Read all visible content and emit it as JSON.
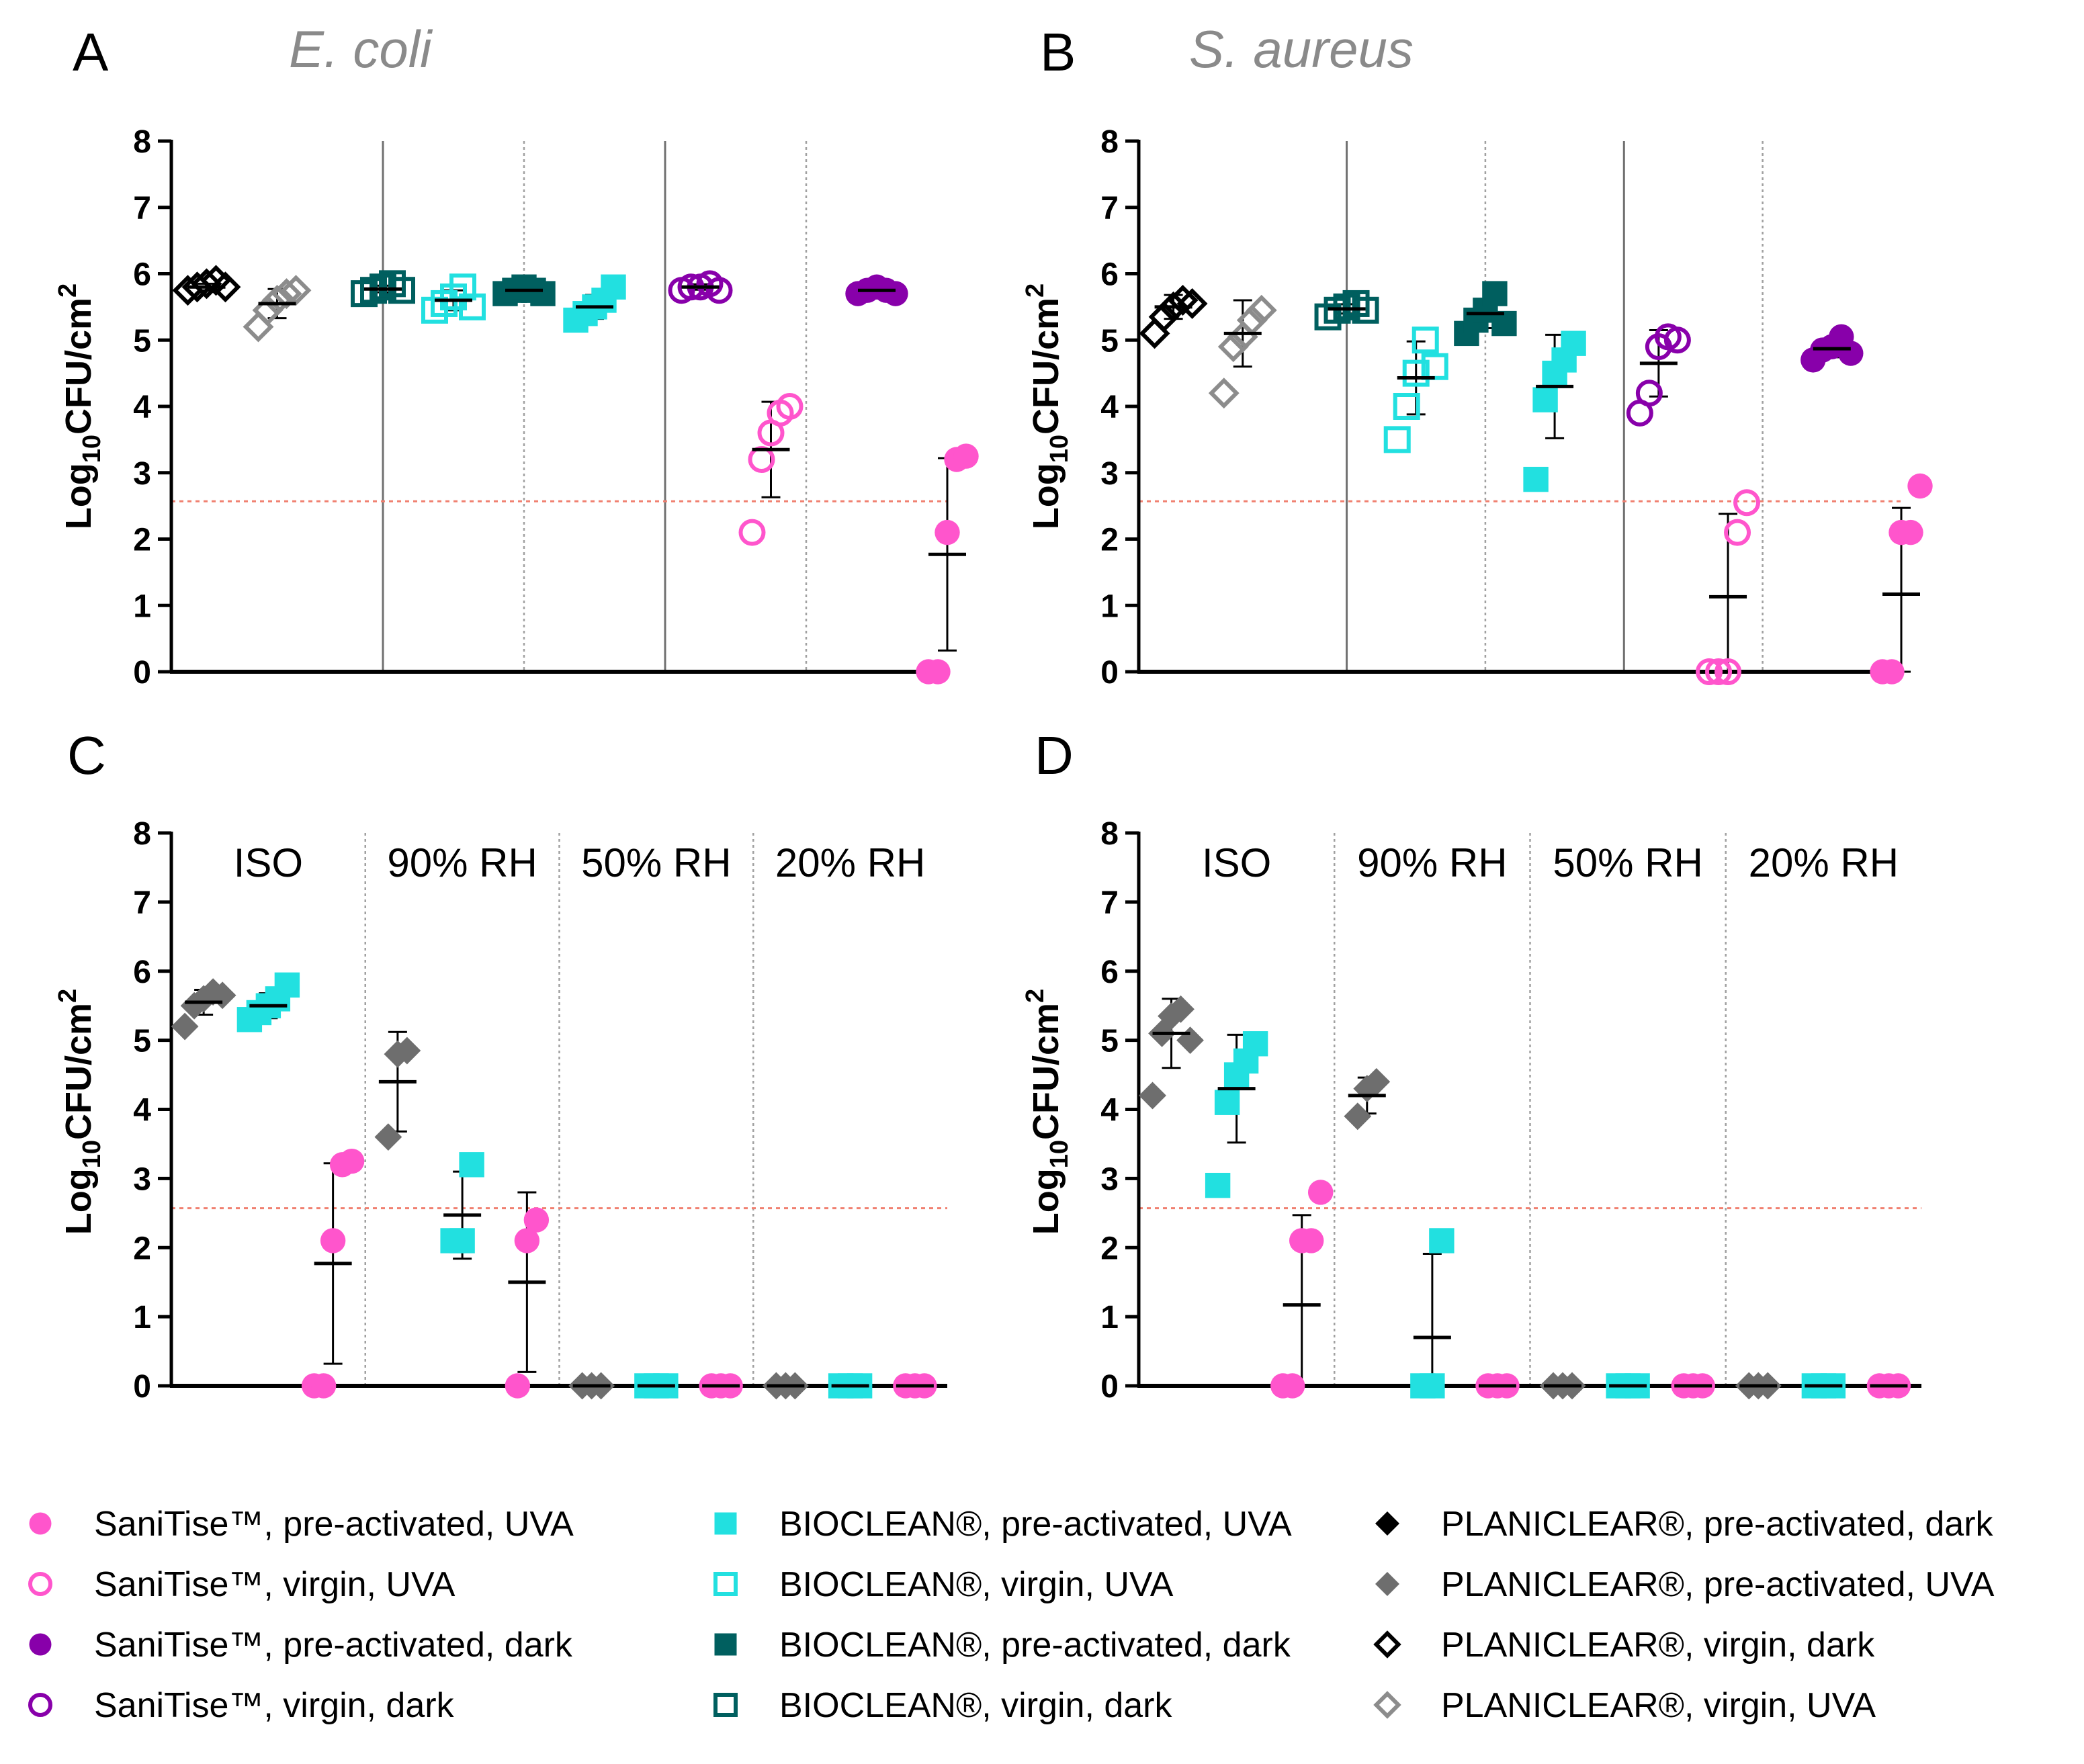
{
  "colors": {
    "sanitise_uva": "#ff55cc",
    "sanitise_dark": "#8800aa",
    "bioclean_uva": "#22e0e0",
    "bioclean_dark": "#005f5f",
    "planiclear_dark": "#000000",
    "planiclear_uva": "#6e6e6e",
    "planiclear_virgin_uva": "#8c8c8c",
    "lod": "#f08070",
    "axis": "#000000",
    "divider_solid": "#707070",
    "divider_dotted": "#a0a0a0"
  },
  "common": {
    "ylabel_main": "Log",
    "ylabel_sub": "10",
    "ylabel_rest": "CFU/cm",
    "ylabel_sup": "2",
    "ylim": [
      0,
      8
    ],
    "yticks": [
      "0",
      "1",
      "2",
      "3",
      "4",
      "5",
      "6",
      "7",
      "8"
    ],
    "detection_limit": 2.57
  },
  "legend": [
    {
      "label": "SaniTise™, pre-activated, UVA",
      "series": "sanitise_pa_uva"
    },
    {
      "label": "SaniTise™, virgin, UVA",
      "series": "sanitise_v_uva"
    },
    {
      "label": "SaniTise™, pre-activated, dark",
      "series": "sanitise_pa_dark"
    },
    {
      "label": "SaniTise™, virgin, dark",
      "series": "sanitise_v_dark"
    },
    {
      "label": "BIOCLEAN®, pre-activated, UVA",
      "series": "bioclean_pa_uva"
    },
    {
      "label": "BIOCLEAN®, virgin, UVA",
      "series": "bioclean_v_uva"
    },
    {
      "label": "BIOCLEAN®, pre-activated, dark",
      "series": "bioclean_pa_dark"
    },
    {
      "label": "BIOCLEAN®, virgin, dark",
      "series": "bioclean_v_dark"
    },
    {
      "label": "PLANICLEAR®, pre-activated, dark",
      "series": "planiclear_pa_dark"
    },
    {
      "label": "PLANICLEAR®, pre-activated, UVA",
      "series": "planiclear_pa_uva"
    },
    {
      "label": "PLANICLEAR®, virgin, dark",
      "series": "planiclear_v_dark"
    },
    {
      "label": "PLANICLEAR®, virgin, UVA",
      "series": "planiclear_v_uva"
    }
  ],
  "series_styles": {
    "sanitise_pa_uva": {
      "shape": "circle",
      "fill": true,
      "color": "sanitise_uva"
    },
    "sanitise_v_uva": {
      "shape": "circle",
      "fill": false,
      "color": "sanitise_uva"
    },
    "sanitise_pa_dark": {
      "shape": "circle",
      "fill": true,
      "color": "sanitise_dark"
    },
    "sanitise_v_dark": {
      "shape": "circle",
      "fill": false,
      "color": "sanitise_dark"
    },
    "bioclean_pa_uva": {
      "shape": "square",
      "fill": true,
      "color": "bioclean_uva"
    },
    "bioclean_v_uva": {
      "shape": "square",
      "fill": false,
      "color": "bioclean_uva"
    },
    "bioclean_pa_dark": {
      "shape": "square",
      "fill": true,
      "color": "bioclean_dark"
    },
    "bioclean_v_dark": {
      "shape": "square",
      "fill": false,
      "color": "bioclean_dark"
    },
    "planiclear_pa_dark": {
      "shape": "diamond",
      "fill": true,
      "color": "planiclear_dark"
    },
    "planiclear_pa_uva": {
      "shape": "diamond",
      "fill": true,
      "color": "planiclear_uva"
    },
    "planiclear_v_dark": {
      "shape": "diamond",
      "fill": false,
      "color": "planiclear_dark"
    },
    "planiclear_v_uva": {
      "shape": "diamond",
      "fill": false,
      "color": "planiclear_virgin_uva"
    }
  },
  "chart_data": [
    {
      "panel": "A",
      "organism": "E. coli",
      "type": "scatter",
      "n_slots": 11,
      "dividers": [
        {
          "after": 2,
          "style": "solid"
        },
        {
          "after": 4,
          "style": "dotted"
        },
        {
          "after": 6,
          "style": "solid"
        },
        {
          "after": 8,
          "style": "dotted"
        }
      ],
      "condition_labels": [],
      "groups": [
        {
          "series": "planiclear_v_dark",
          "slot": 0,
          "values": [
            5.75,
            5.8,
            5.85,
            5.9,
            5.8
          ],
          "mean": 5.8,
          "sd": 0.05
        },
        {
          "series": "planiclear_v_uva",
          "slot": 1,
          "values": [
            5.2,
            5.45,
            5.6,
            5.7,
            5.75
          ],
          "mean": 5.55,
          "sd": 0.22
        },
        {
          "series": "bioclean_v_dark",
          "slot": 2.5,
          "values": [
            5.7,
            5.75,
            5.8,
            5.85,
            5.75
          ],
          "mean": 5.77,
          "sd": 0.05
        },
        {
          "series": "bioclean_v_uva",
          "slot": 3.5,
          "values": [
            5.45,
            5.55,
            5.65,
            5.8,
            5.5
          ],
          "mean": 5.6,
          "sd": 0.15
        },
        {
          "series": "bioclean_pa_dark",
          "slot": 4.5,
          "values": [
            5.7,
            5.75,
            5.8,
            5.75,
            5.7
          ],
          "mean": 5.75,
          "sd": 0.04
        },
        {
          "series": "bioclean_pa_uva",
          "slot": 5.5,
          "values": [
            5.3,
            5.4,
            5.5,
            5.6,
            5.8
          ],
          "mean": 5.5,
          "sd": 0.18
        },
        {
          "series": "sanitise_v_dark",
          "slot": 7,
          "values": [
            5.75,
            5.8,
            5.8,
            5.85,
            5.75
          ],
          "mean": 5.8,
          "sd": 0.04
        },
        {
          "series": "sanitise_v_uva",
          "slot": 8,
          "values": [
            2.1,
            3.2,
            3.6,
            3.9,
            4.0
          ],
          "mean": 3.35,
          "sd": 0.72
        },
        {
          "series": "sanitise_pa_dark",
          "slot": 9.5,
          "values": [
            5.7,
            5.75,
            5.8,
            5.75,
            5.7
          ],
          "mean": 5.75,
          "sd": 0.04
        },
        {
          "series": "sanitise_pa_uva",
          "slot": 10.5,
          "values": [
            0,
            0,
            2.1,
            3.2,
            3.25
          ],
          "mean": 1.77,
          "sd": 1.45
        }
      ]
    },
    {
      "panel": "B",
      "organism": "S. aureus",
      "type": "scatter",
      "n_slots": 11,
      "dividers": [
        {
          "after": 2,
          "style": "solid"
        },
        {
          "after": 4,
          "style": "dotted"
        },
        {
          "after": 6,
          "style": "solid"
        },
        {
          "after": 8,
          "style": "dotted"
        }
      ],
      "condition_labels": [],
      "groups": [
        {
          "series": "planiclear_v_dark",
          "slot": 0,
          "values": [
            5.1,
            5.35,
            5.5,
            5.6,
            5.55
          ],
          "mean": 5.5,
          "sd": 0.18
        },
        {
          "series": "planiclear_v_uva",
          "slot": 1,
          "values": [
            4.2,
            4.9,
            5.05,
            5.3,
            5.45
          ],
          "mean": 5.1,
          "sd": 0.5
        },
        {
          "series": "bioclean_v_dark",
          "slot": 2.5,
          "values": [
            5.35,
            5.45,
            5.5,
            5.55,
            5.45
          ],
          "mean": 5.47,
          "sd": 0.07
        },
        {
          "series": "bioclean_v_uva",
          "slot": 3.5,
          "values": [
            3.5,
            4.0,
            4.5,
            5.0,
            4.6
          ],
          "mean": 4.43,
          "sd": 0.55
        },
        {
          "series": "bioclean_pa_dark",
          "slot": 4.5,
          "values": [
            5.1,
            5.3,
            5.45,
            5.7,
            5.25
          ],
          "mean": 5.4,
          "sd": 0.22
        },
        {
          "series": "bioclean_pa_uva",
          "slot": 5.5,
          "values": [
            2.9,
            4.1,
            4.5,
            4.7,
            4.95
          ],
          "mean": 4.3,
          "sd": 0.78
        },
        {
          "series": "sanitise_v_dark",
          "slot": 7,
          "values": [
            3.9,
            4.2,
            4.9,
            5.05,
            5.0
          ],
          "mean": 4.65,
          "sd": 0.5
        },
        {
          "series": "sanitise_v_uva",
          "slot": 8,
          "values": [
            0,
            0,
            0,
            2.1,
            2.55
          ],
          "mean": 1.13,
          "sd": 1.25
        },
        {
          "series": "sanitise_pa_dark",
          "slot": 9.5,
          "values": [
            4.7,
            4.85,
            4.9,
            5.05,
            4.8
          ],
          "mean": 4.87,
          "sd": 0.13
        },
        {
          "series": "sanitise_pa_uva",
          "slot": 10.5,
          "values": [
            0,
            0,
            2.1,
            2.1,
            2.8
          ],
          "mean": 1.17,
          "sd": 1.3
        }
      ]
    },
    {
      "panel": "C",
      "organism": "",
      "type": "scatter",
      "n_slots": 12,
      "dividers": [
        {
          "after": 2,
          "style": "dotted"
        },
        {
          "after": 5,
          "style": "dotted"
        },
        {
          "after": 8,
          "style": "dotted"
        }
      ],
      "condition_labels": [
        {
          "label": "ISO",
          "center": 1
        },
        {
          "label": "90% RH",
          "center": 4
        },
        {
          "label": "50% RH",
          "center": 7
        },
        {
          "label": "20% RH",
          "center": 10
        }
      ],
      "groups": [
        {
          "series": "planiclear_pa_uva",
          "slot": 0,
          "values": [
            5.2,
            5.5,
            5.6,
            5.7,
            5.65
          ],
          "mean": 5.55,
          "sd": 0.18
        },
        {
          "series": "bioclean_pa_uva",
          "slot": 1,
          "values": [
            5.3,
            5.4,
            5.5,
            5.6,
            5.8
          ],
          "mean": 5.5,
          "sd": 0.18
        },
        {
          "series": "sanitise_pa_uva",
          "slot": 2,
          "values": [
            0,
            0,
            2.1,
            3.2,
            3.25
          ],
          "mean": 1.77,
          "sd": 1.45
        },
        {
          "series": "planiclear_pa_uva",
          "slot": 3,
          "values": [
            3.6,
            4.8,
            4.85
          ],
          "mean": 4.4,
          "sd": 0.72
        },
        {
          "series": "bioclean_pa_uva",
          "slot": 4,
          "values": [
            2.1,
            2.1,
            3.2
          ],
          "mean": 2.47,
          "sd": 0.63
        },
        {
          "series": "sanitise_pa_uva",
          "slot": 5,
          "values": [
            0,
            2.1,
            2.4
          ],
          "mean": 1.5,
          "sd": 1.3
        },
        {
          "series": "planiclear_pa_uva",
          "slot": 6,
          "values": [
            0,
            0,
            0
          ],
          "mean": 0,
          "sd": 0
        },
        {
          "series": "bioclean_pa_uva",
          "slot": 7,
          "values": [
            0,
            0,
            0
          ],
          "mean": 0,
          "sd": 0
        },
        {
          "series": "sanitise_pa_uva",
          "slot": 8,
          "values": [
            0,
            0,
            0
          ],
          "mean": 0,
          "sd": 0
        },
        {
          "series": "planiclear_pa_uva",
          "slot": 9,
          "values": [
            0,
            0,
            0
          ],
          "mean": 0,
          "sd": 0
        },
        {
          "series": "bioclean_pa_uva",
          "slot": 10,
          "values": [
            0,
            0,
            0
          ],
          "mean": 0,
          "sd": 0
        },
        {
          "series": "sanitise_pa_uva",
          "slot": 11,
          "values": [
            0,
            0,
            0
          ],
          "mean": 0,
          "sd": 0
        }
      ]
    },
    {
      "panel": "D",
      "organism": "",
      "type": "scatter",
      "n_slots": 12,
      "dividers": [
        {
          "after": 2,
          "style": "dotted"
        },
        {
          "after": 5,
          "style": "dotted"
        },
        {
          "after": 8,
          "style": "dotted"
        }
      ],
      "condition_labels": [
        {
          "label": "ISO",
          "center": 1
        },
        {
          "label": "90% RH",
          "center": 4
        },
        {
          "label": "50% RH",
          "center": 7
        },
        {
          "label": "20% RH",
          "center": 10
        }
      ],
      "groups": [
        {
          "series": "planiclear_pa_uva",
          "slot": 0,
          "values": [
            4.2,
            5.1,
            5.35,
            5.45,
            5.0
          ],
          "mean": 5.1,
          "sd": 0.5
        },
        {
          "series": "bioclean_pa_uva",
          "slot": 1,
          "values": [
            2.9,
            4.1,
            4.5,
            4.7,
            4.95
          ],
          "mean": 4.3,
          "sd": 0.78
        },
        {
          "series": "sanitise_pa_uva",
          "slot": 2,
          "values": [
            0,
            0,
            2.1,
            2.1,
            2.8
          ],
          "mean": 1.17,
          "sd": 1.3
        },
        {
          "series": "planiclear_pa_uva",
          "slot": 3,
          "values": [
            3.9,
            4.3,
            4.4
          ],
          "mean": 4.2,
          "sd": 0.26
        },
        {
          "series": "bioclean_pa_uva",
          "slot": 4,
          "values": [
            0,
            0,
            2.1
          ],
          "mean": 0.7,
          "sd": 1.21
        },
        {
          "series": "sanitise_pa_uva",
          "slot": 5,
          "values": [
            0,
            0,
            0
          ],
          "mean": 0,
          "sd": 0
        },
        {
          "series": "planiclear_pa_uva",
          "slot": 6,
          "values": [
            0,
            0,
            0
          ],
          "mean": 0,
          "sd": 0
        },
        {
          "series": "bioclean_pa_uva",
          "slot": 7,
          "values": [
            0,
            0,
            0
          ],
          "mean": 0,
          "sd": 0
        },
        {
          "series": "sanitise_pa_uva",
          "slot": 8,
          "values": [
            0,
            0,
            0
          ],
          "mean": 0,
          "sd": 0
        },
        {
          "series": "planiclear_pa_uva",
          "slot": 9,
          "values": [
            0,
            0,
            0
          ],
          "mean": 0,
          "sd": 0
        },
        {
          "series": "bioclean_pa_uva",
          "slot": 10,
          "values": [
            0,
            0,
            0
          ],
          "mean": 0,
          "sd": 0
        },
        {
          "series": "sanitise_pa_uva",
          "slot": 11,
          "values": [
            0,
            0,
            0
          ],
          "mean": 0,
          "sd": 0
        }
      ]
    }
  ]
}
